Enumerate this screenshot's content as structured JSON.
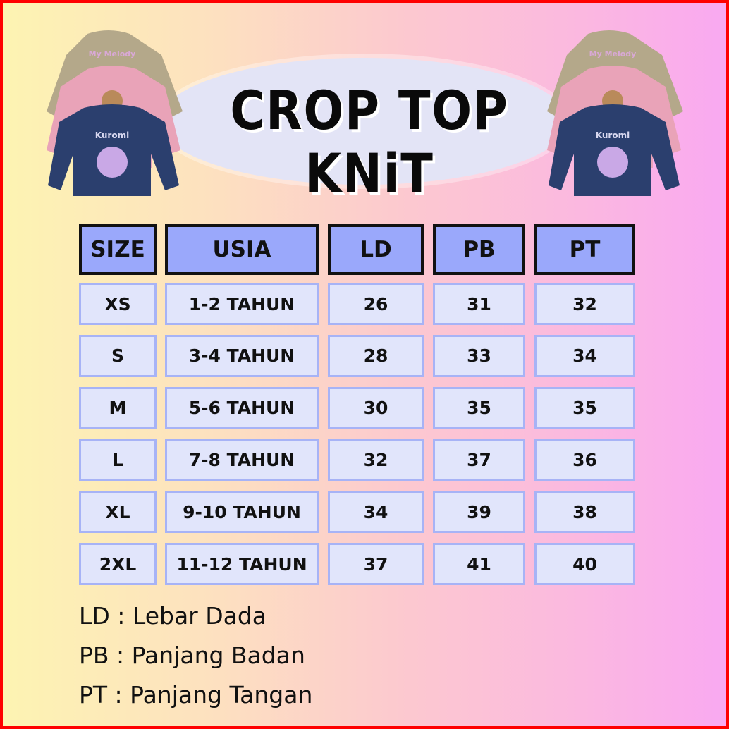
{
  "title": "CROP TOP KNiT",
  "colors": {
    "frame": "#ff0000",
    "header_cell": "#9aa8fb",
    "body_cell": "#e1e5fb",
    "body_border": "#a7b3f6"
  },
  "images": {
    "shirt_prints": [
      "My Melody",
      "Kuromi"
    ]
  },
  "table": {
    "headers": [
      "SIZE",
      "USIA",
      "LD",
      "PB",
      "PT"
    ],
    "rows": [
      [
        "XS",
        "1-2 TAHUN",
        "26",
        "31",
        "32"
      ],
      [
        "S",
        "3-4 TAHUN",
        "28",
        "33",
        "34"
      ],
      [
        "M",
        "5-6 TAHUN",
        "30",
        "35",
        "35"
      ],
      [
        "L",
        "7-8 TAHUN",
        "32",
        "37",
        "36"
      ],
      [
        "XL",
        "9-10 TAHUN",
        "34",
        "39",
        "38"
      ],
      [
        "2XL",
        "11-12 TAHUN",
        "37",
        "41",
        "40"
      ]
    ]
  },
  "legend": [
    "LD : Lebar Dada",
    "PB : Panjang Badan",
    "PT : Panjang Tangan"
  ]
}
